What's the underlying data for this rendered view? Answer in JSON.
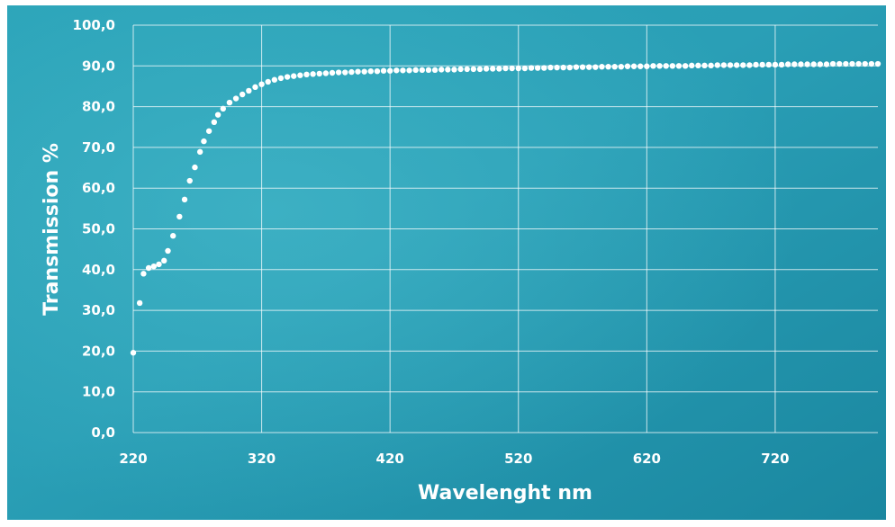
{
  "chart_data": {
    "type": "scatter",
    "x_label": "Wavelenght nm",
    "y_label": "Transmission %",
    "x": [
      220,
      225,
      228,
      232,
      236,
      240,
      244,
      247,
      251,
      256,
      260,
      264,
      268,
      272,
      275,
      279,
      283,
      286,
      290,
      295,
      300,
      305,
      310,
      315,
      320,
      325,
      330,
      335,
      340,
      345,
      350,
      355,
      360,
      365,
      370,
      375,
      380,
      385,
      390,
      395,
      400,
      405,
      410,
      415,
      420,
      425,
      430,
      435,
      440,
      445,
      450,
      455,
      460,
      465,
      470,
      475,
      480,
      485,
      490,
      495,
      500,
      505,
      510,
      515,
      520,
      525,
      530,
      535,
      540,
      545,
      550,
      555,
      560,
      565,
      570,
      575,
      580,
      585,
      590,
      595,
      600,
      605,
      610,
      615,
      620,
      625,
      630,
      635,
      640,
      645,
      650,
      655,
      660,
      665,
      670,
      675,
      680,
      685,
      690,
      695,
      700,
      705,
      710,
      715,
      720,
      725,
      730,
      735,
      740,
      745,
      750,
      755,
      760,
      765,
      770,
      775,
      780,
      785,
      790,
      795,
      800
    ],
    "values": [
      19.6,
      31.8,
      39.0,
      40.4,
      40.8,
      41.3,
      42.2,
      44.6,
      48.3,
      53.0,
      57.2,
      61.8,
      65.1,
      68.9,
      71.5,
      74.0,
      76.2,
      78.0,
      79.5,
      81.0,
      82.0,
      83.0,
      83.9,
      84.8,
      85.5,
      86.1,
      86.6,
      87.0,
      87.3,
      87.5,
      87.7,
      87.9,
      88.0,
      88.1,
      88.2,
      88.3,
      88.4,
      88.4,
      88.5,
      88.6,
      88.6,
      88.7,
      88.7,
      88.8,
      88.8,
      88.9,
      88.9,
      88.9,
      89.0,
      89.0,
      89.0,
      89.0,
      89.1,
      89.1,
      89.1,
      89.2,
      89.2,
      89.2,
      89.2,
      89.3,
      89.3,
      89.3,
      89.4,
      89.4,
      89.4,
      89.4,
      89.5,
      89.5,
      89.5,
      89.6,
      89.6,
      89.6,
      89.6,
      89.7,
      89.7,
      89.7,
      89.7,
      89.8,
      89.8,
      89.8,
      89.8,
      89.9,
      89.9,
      89.9,
      89.9,
      90.0,
      90.0,
      90.0,
      90.0,
      90.0,
      90.0,
      90.1,
      90.1,
      90.1,
      90.1,
      90.2,
      90.2,
      90.2,
      90.2,
      90.2,
      90.2,
      90.3,
      90.3,
      90.3,
      90.3,
      90.3,
      90.4,
      90.4,
      90.4,
      90.4,
      90.4,
      90.4,
      90.4,
      90.5,
      90.5,
      90.5,
      90.5,
      90.5,
      90.5,
      90.5,
      90.5
    ],
    "color": "#ffffff",
    "xlim": [
      220,
      800
    ],
    "xticks": [
      220,
      320,
      420,
      520,
      620,
      720
    ],
    "ylim": [
      0,
      100
    ],
    "yticks": [
      {
        "value": 0,
        "label": "0,0"
      },
      {
        "value": 10,
        "label": "10,0"
      },
      {
        "value": 20,
        "label": "20,0"
      },
      {
        "value": 30,
        "label": "30,0"
      },
      {
        "value": 40,
        "label": "40,0"
      },
      {
        "value": 50,
        "label": "50,0"
      },
      {
        "value": 60,
        "label": "60,0"
      },
      {
        "value": 70,
        "label": "70,0"
      },
      {
        "value": 80,
        "label": "80,0"
      },
      {
        "value": 90,
        "label": "90,0"
      },
      {
        "value": 100,
        "label": "100,0"
      }
    ],
    "grid": true
  }
}
